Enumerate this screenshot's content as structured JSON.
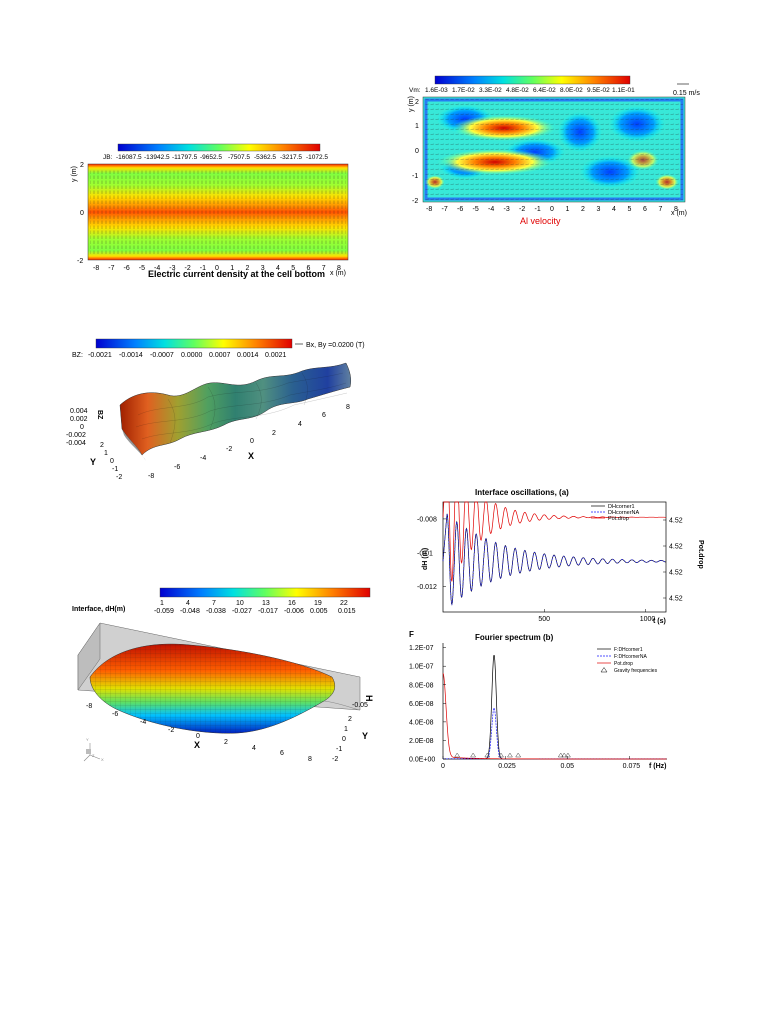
{
  "jb_panel": {
    "colorbar_key": "JB:",
    "colorbar_values": [
      "-16087.5",
      "-13942.5",
      "-11797.5",
      "-9652.5",
      "-7507.5",
      "-5362.5",
      "-3217.5",
      "-1072.5"
    ],
    "y_axis_label": "y (m)",
    "x_axis_label": "x (m)",
    "y_ticks": [
      "2",
      "0",
      "-2"
    ],
    "x_ticks": [
      "-8",
      "-7",
      "-6",
      "-5",
      "-4",
      "-3",
      "-2",
      "-1",
      "0",
      "1",
      "2",
      "3",
      "4",
      "5",
      "6",
      "7",
      "8"
    ],
    "caption": "Electric current density at the cell bottom"
  },
  "vel_panel": {
    "colorbar_key": "Vm:",
    "colorbar_values": [
      "1.6E-03",
      "1.7E-02",
      "3.3E-02",
      "4.8E-02",
      "6.4E-02",
      "8.0E-02",
      "9.5E-02",
      "1.1E-01"
    ],
    "ref_vector": "0.15 m/s",
    "y_axis_label": "y (m)",
    "x_axis_label": "x (m)",
    "y_ticks": [
      "2",
      "1",
      "0",
      "-1",
      "-2"
    ],
    "x_ticks": [
      "-8",
      "-7",
      "-6",
      "-5",
      "-4",
      "-3",
      "-2",
      "-1",
      "0",
      "1",
      "2",
      "3",
      "4",
      "5",
      "6",
      "7",
      "8"
    ],
    "caption": "Al velocity"
  },
  "bz_panel": {
    "legend": "Bx, By =0.0200 (T)",
    "colorbar_key": "BZ:",
    "colorbar_values": [
      "-0.0021",
      "-0.0014",
      "-0.0007",
      "0.0000",
      "0.0007",
      "0.0014",
      "0.0021"
    ],
    "z_axis_label": "BZ",
    "z_ticks": [
      "0.004",
      "0.002",
      "0",
      "-0.002",
      "-0.004"
    ],
    "y_axis_label": "Y",
    "y_ticks": [
      "2",
      "1",
      "0",
      "-1",
      "-2"
    ],
    "x_axis_label": "X",
    "x_ticks": [
      "-8",
      "-6",
      "-4",
      "-2",
      "0",
      "2",
      "4",
      "6",
      "8"
    ]
  },
  "interface_panel": {
    "title": "Interface, dH(m)",
    "colorbar_index": [
      "1",
      "4",
      "7",
      "10",
      "13",
      "16",
      "19",
      "22"
    ],
    "colorbar_values": [
      "-0.059",
      "-0.048",
      "-0.038",
      "-0.027",
      "-0.017",
      "-0.006",
      "0.005",
      "0.015"
    ],
    "x_axis_label": "X",
    "x_ticks": [
      "-8",
      "-6",
      "-4",
      "-2",
      "0",
      "2",
      "4",
      "6",
      "8"
    ],
    "y_axis_label": "Y",
    "y_ticks": [
      "2",
      "1",
      "0",
      "-1",
      "-2"
    ],
    "h_axis_label": "H",
    "h_tick": "-0.05",
    "triad_labels": [
      "Y",
      "Z",
      "X"
    ]
  },
  "colors": {
    "jet": [
      "#00008f",
      "#0000ff",
      "#0080ff",
      "#00ffff",
      "#80ff80",
      "#ffff00",
      "#ff8000",
      "#ff0000",
      "#800000"
    ],
    "series_black": "#000000",
    "series_blue": "#1a1aff",
    "series_red": "#e00000"
  },
  "chart_data": [
    {
      "type": "line",
      "title": "Interface oscillations,  (a)",
      "xlabel": "t (s)",
      "ylabel": "dH (m)",
      "y2label": "Pot.drop",
      "xlim": [
        0,
        1100
      ],
      "ylim": [
        -0.0135,
        -0.007
      ],
      "x_ticks": [
        "500",
        "1000"
      ],
      "y_ticks": [
        "-0.008",
        "-0.01",
        "-0.012"
      ],
      "y2_ticks": [
        "4.52",
        "4.52",
        "4.52",
        "4.52"
      ],
      "legend": [
        "DHcorner1",
        "DHcornerNA",
        "Pot.drop"
      ],
      "legend_position": "top-right",
      "series": [
        {
          "name": "DHcorner1",
          "color": "#000000",
          "decay_start_t": 20,
          "mean": -0.0105,
          "initial_amplitude": 0.0028,
          "period_s": 48,
          "decay_time_s": 260
        },
        {
          "name": "DHcornerNA",
          "color": "#1a1aff",
          "decay_start_t": 20,
          "mean": -0.0105,
          "initial_amplitude": 0.0028,
          "period_s": 48,
          "decay_time_s": 260
        },
        {
          "name": "Pot.drop",
          "color": "#e00000",
          "decay_start_t": 20,
          "mean_y1_equiv": -0.0079,
          "initial_amplitude_y1_equiv": 0.0045,
          "period_s": 48,
          "decay_time_s": 140
        }
      ]
    },
    {
      "type": "line",
      "title": "Fourier spectrum (b)",
      "xlabel": "f (Hz)",
      "ylabel": "F",
      "xlim": [
        0,
        0.09
      ],
      "ylim": [
        0,
        1.25e-07
      ],
      "x_ticks": [
        "0",
        "0.025",
        "0.05",
        "0.075"
      ],
      "y_ticks": [
        "0.0E+00",
        "2.0E-08",
        "4.0E-08",
        "6.0E-08",
        "8.0E-08",
        "1.0E-07",
        "1.2E-07"
      ],
      "legend": [
        "F:DHcorner1",
        "F:DHcornerNA",
        "Pot.drop",
        "Gravity frequencies"
      ],
      "legend_position": "top-right",
      "series": [
        {
          "name": "F:DHcorner1",
          "color": "#000000",
          "peak_f": 0.0205,
          "peak_F": 1.12e-07,
          "width": 0.0009
        },
        {
          "name": "F:DHcornerNA",
          "color": "#1a1aff",
          "peak_f": 0.0205,
          "peak_F": 5.5e-08,
          "width": 0.0009
        },
        {
          "name": "Pot.drop",
          "color": "#e00000",
          "peak_f": 0.0,
          "peak_F": 9e-08,
          "width": 0.0012
        }
      ],
      "gravity_frequencies": [
        0.0057,
        0.0121,
        0.0178,
        0.0233,
        0.0269,
        0.0302,
        0.0473,
        0.0487,
        0.0502
      ]
    }
  ]
}
